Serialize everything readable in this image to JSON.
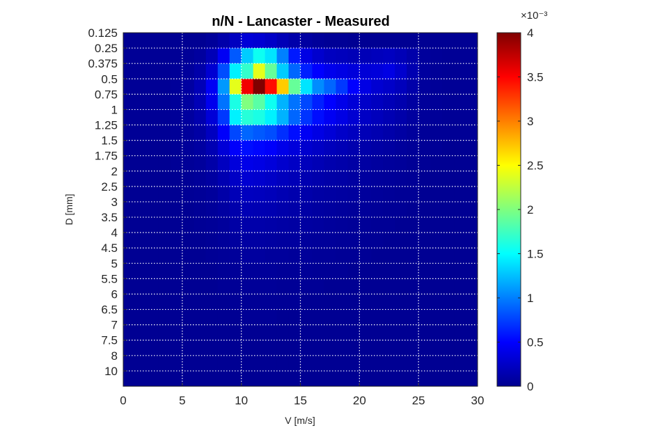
{
  "chart_data": {
    "type": "heatmap",
    "title": "n/N - Lancaster - Measured",
    "xlabel": "V [m/s]",
    "ylabel": "D [mm]",
    "xlim": [
      0,
      30
    ],
    "x_ticks": [
      "0",
      "5",
      "10",
      "15",
      "20",
      "25",
      "30"
    ],
    "y_categories": [
      "0.125",
      "0.25",
      "0.375",
      "0.5",
      "0.75",
      "1",
      "1.25",
      "1.5",
      "1.75",
      "2",
      "2.5",
      "3",
      "3.5",
      "4",
      "4.5",
      "5",
      "5.5",
      "6",
      "6.5",
      "7",
      "7.5",
      "8",
      "10"
    ],
    "grid": "dotted white",
    "colormap": "jet",
    "colorbar": {
      "range": [
        0,
        0.004
      ],
      "ticks": [
        "0",
        "0.5",
        "1",
        "1.5",
        "2",
        "2.5",
        "3",
        "3.5",
        "4"
      ],
      "exponent_label": "×10⁻³"
    },
    "x_bin_centers": [
      0.5,
      1.5,
      2.5,
      3.5,
      4.5,
      5.5,
      6.5,
      7.5,
      8.5,
      9.5,
      10.5,
      11.5,
      12.5,
      13.5,
      14.5,
      15.5,
      16.5,
      17.5,
      18.5,
      19.5,
      20.5,
      21.5,
      22.5,
      23.5,
      24.5,
      25.5,
      26.5,
      27.5,
      28.5,
      29.5
    ],
    "values_e3": [
      [
        0.02,
        0.02,
        0.02,
        0.02,
        0.02,
        0.02,
        0.02,
        0.05,
        0.12,
        0.22,
        0.32,
        0.3,
        0.25,
        0.18,
        0.12,
        0.08,
        0.05,
        0.03,
        0.03,
        0.02,
        0.02,
        0.02,
        0.02,
        0.02,
        0.02,
        0.02,
        0.02,
        0.02,
        0.02,
        0.02
      ],
      [
        0.03,
        0.03,
        0.03,
        0.03,
        0.03,
        0.04,
        0.07,
        0.18,
        0.45,
        0.85,
        1.3,
        1.55,
        1.4,
        1.0,
        0.6,
        0.38,
        0.28,
        0.22,
        0.2,
        0.18,
        0.18,
        0.2,
        0.22,
        0.18,
        0.12,
        0.06,
        0.04,
        0.03,
        0.03,
        0.03
      ],
      [
        0.03,
        0.03,
        0.03,
        0.03,
        0.04,
        0.06,
        0.12,
        0.3,
        0.8,
        1.45,
        1.7,
        2.4,
        1.9,
        1.3,
        0.9,
        0.62,
        0.5,
        0.42,
        0.38,
        0.34,
        0.32,
        0.34,
        0.38,
        0.28,
        0.15,
        0.07,
        0.04,
        0.03,
        0.03,
        0.03
      ],
      [
        0.03,
        0.03,
        0.03,
        0.03,
        0.05,
        0.08,
        0.18,
        0.45,
        1.1,
        2.4,
        3.55,
        4.0,
        3.45,
        2.7,
        1.9,
        1.4,
        1.05,
        0.9,
        0.72,
        0.5,
        0.38,
        0.3,
        0.26,
        0.2,
        0.12,
        0.06,
        0.04,
        0.03,
        0.03,
        0.03
      ],
      [
        0.03,
        0.03,
        0.03,
        0.03,
        0.05,
        0.08,
        0.18,
        0.42,
        0.95,
        1.6,
        2.0,
        1.85,
        1.55,
        1.2,
        0.95,
        0.78,
        0.62,
        0.5,
        0.4,
        0.32,
        0.26,
        0.22,
        0.18,
        0.14,
        0.08,
        0.05,
        0.04,
        0.03,
        0.03,
        0.03
      ],
      [
        0.03,
        0.03,
        0.03,
        0.03,
        0.04,
        0.07,
        0.14,
        0.32,
        0.72,
        1.45,
        1.65,
        1.6,
        1.45,
        1.2,
        0.9,
        0.7,
        0.55,
        0.45,
        0.38,
        0.3,
        0.24,
        0.2,
        0.16,
        0.12,
        0.07,
        0.05,
        0.04,
        0.03,
        0.03,
        0.03
      ],
      [
        0.03,
        0.03,
        0.03,
        0.03,
        0.04,
        0.06,
        0.1,
        0.22,
        0.48,
        0.78,
        0.9,
        0.85,
        0.8,
        0.68,
        0.55,
        0.45,
        0.38,
        0.32,
        0.26,
        0.22,
        0.18,
        0.15,
        0.12,
        0.09,
        0.06,
        0.04,
        0.03,
        0.03,
        0.03,
        0.03
      ],
      [
        0.02,
        0.02,
        0.02,
        0.02,
        0.03,
        0.05,
        0.08,
        0.16,
        0.32,
        0.48,
        0.55,
        0.52,
        0.48,
        0.4,
        0.34,
        0.28,
        0.24,
        0.2,
        0.17,
        0.14,
        0.12,
        0.1,
        0.08,
        0.06,
        0.04,
        0.03,
        0.03,
        0.02,
        0.02,
        0.02
      ],
      [
        0.02,
        0.02,
        0.02,
        0.02,
        0.03,
        0.04,
        0.06,
        0.11,
        0.22,
        0.34,
        0.4,
        0.38,
        0.34,
        0.28,
        0.24,
        0.2,
        0.17,
        0.14,
        0.12,
        0.1,
        0.09,
        0.07,
        0.06,
        0.05,
        0.03,
        0.03,
        0.02,
        0.02,
        0.02,
        0.02
      ],
      [
        0.02,
        0.02,
        0.02,
        0.02,
        0.02,
        0.03,
        0.05,
        0.08,
        0.15,
        0.24,
        0.3,
        0.28,
        0.25,
        0.21,
        0.18,
        0.15,
        0.13,
        0.11,
        0.1,
        0.08,
        0.07,
        0.06,
        0.05,
        0.04,
        0.03,
        0.02,
        0.02,
        0.02,
        0.02,
        0.02
      ],
      [
        0.02,
        0.02,
        0.02,
        0.02,
        0.02,
        0.03,
        0.04,
        0.06,
        0.11,
        0.18,
        0.22,
        0.21,
        0.19,
        0.16,
        0.14,
        0.12,
        0.1,
        0.09,
        0.08,
        0.07,
        0.06,
        0.05,
        0.04,
        0.03,
        0.03,
        0.02,
        0.02,
        0.02,
        0.02,
        0.02
      ],
      [
        0.02,
        0.02,
        0.02,
        0.02,
        0.02,
        0.02,
        0.03,
        0.05,
        0.08,
        0.13,
        0.17,
        0.16,
        0.15,
        0.13,
        0.11,
        0.1,
        0.08,
        0.07,
        0.06,
        0.05,
        0.05,
        0.04,
        0.03,
        0.03,
        0.02,
        0.02,
        0.02,
        0.02,
        0.02,
        0.02
      ],
      [
        0.02,
        0.02,
        0.02,
        0.02,
        0.02,
        0.02,
        0.03,
        0.04,
        0.06,
        0.1,
        0.12,
        0.12,
        0.11,
        0.1,
        0.09,
        0.08,
        0.07,
        0.06,
        0.05,
        0.04,
        0.04,
        0.03,
        0.03,
        0.02,
        0.02,
        0.02,
        0.02,
        0.02,
        0.02,
        0.02
      ],
      [
        0.02,
        0.02,
        0.02,
        0.02,
        0.02,
        0.02,
        0.02,
        0.03,
        0.05,
        0.07,
        0.09,
        0.09,
        0.08,
        0.07,
        0.07,
        0.06,
        0.05,
        0.05,
        0.04,
        0.04,
        0.03,
        0.03,
        0.02,
        0.02,
        0.02,
        0.02,
        0.02,
        0.02,
        0.02,
        0.02
      ],
      [
        0.02,
        0.02,
        0.02,
        0.02,
        0.02,
        0.02,
        0.02,
        0.03,
        0.04,
        0.05,
        0.07,
        0.07,
        0.06,
        0.06,
        0.05,
        0.05,
        0.04,
        0.04,
        0.03,
        0.03,
        0.03,
        0.02,
        0.02,
        0.02,
        0.02,
        0.02,
        0.02,
        0.02,
        0.02,
        0.02
      ],
      [
        0.02,
        0.02,
        0.02,
        0.02,
        0.02,
        0.02,
        0.02,
        0.02,
        0.03,
        0.04,
        0.05,
        0.05,
        0.05,
        0.04,
        0.04,
        0.04,
        0.03,
        0.03,
        0.03,
        0.02,
        0.02,
        0.02,
        0.02,
        0.02,
        0.02,
        0.02,
        0.02,
        0.02,
        0.02,
        0.02
      ],
      [
        0.02,
        0.02,
        0.02,
        0.02,
        0.02,
        0.02,
        0.02,
        0.02,
        0.03,
        0.03,
        0.04,
        0.04,
        0.04,
        0.03,
        0.03,
        0.03,
        0.03,
        0.02,
        0.02,
        0.02,
        0.02,
        0.02,
        0.02,
        0.02,
        0.02,
        0.02,
        0.02,
        0.02,
        0.02,
        0.02
      ],
      [
        0.02,
        0.02,
        0.02,
        0.02,
        0.02,
        0.02,
        0.02,
        0.02,
        0.02,
        0.03,
        0.03,
        0.03,
        0.03,
        0.03,
        0.03,
        0.02,
        0.02,
        0.02,
        0.02,
        0.02,
        0.02,
        0.02,
        0.02,
        0.02,
        0.02,
        0.02,
        0.02,
        0.02,
        0.02,
        0.02
      ],
      [
        0.02,
        0.02,
        0.02,
        0.02,
        0.02,
        0.02,
        0.02,
        0.02,
        0.02,
        0.02,
        0.03,
        0.03,
        0.03,
        0.02,
        0.02,
        0.02,
        0.02,
        0.02,
        0.02,
        0.02,
        0.02,
        0.02,
        0.02,
        0.02,
        0.02,
        0.02,
        0.02,
        0.02,
        0.02,
        0.02
      ],
      [
        0.02,
        0.02,
        0.02,
        0.02,
        0.02,
        0.02,
        0.02,
        0.02,
        0.02,
        0.02,
        0.02,
        0.02,
        0.02,
        0.02,
        0.02,
        0.02,
        0.02,
        0.02,
        0.02,
        0.02,
        0.02,
        0.02,
        0.02,
        0.02,
        0.02,
        0.02,
        0.02,
        0.02,
        0.02,
        0.02
      ],
      [
        0.02,
        0.02,
        0.02,
        0.02,
        0.02,
        0.02,
        0.02,
        0.02,
        0.02,
        0.02,
        0.02,
        0.02,
        0.02,
        0.02,
        0.02,
        0.02,
        0.02,
        0.02,
        0.02,
        0.02,
        0.02,
        0.02,
        0.02,
        0.02,
        0.02,
        0.02,
        0.02,
        0.02,
        0.02,
        0.02
      ],
      [
        0.02,
        0.02,
        0.02,
        0.02,
        0.02,
        0.02,
        0.02,
        0.02,
        0.02,
        0.02,
        0.02,
        0.02,
        0.02,
        0.02,
        0.02,
        0.02,
        0.02,
        0.02,
        0.02,
        0.02,
        0.02,
        0.02,
        0.02,
        0.02,
        0.02,
        0.02,
        0.02,
        0.02,
        0.02,
        0.02
      ]
    ]
  }
}
